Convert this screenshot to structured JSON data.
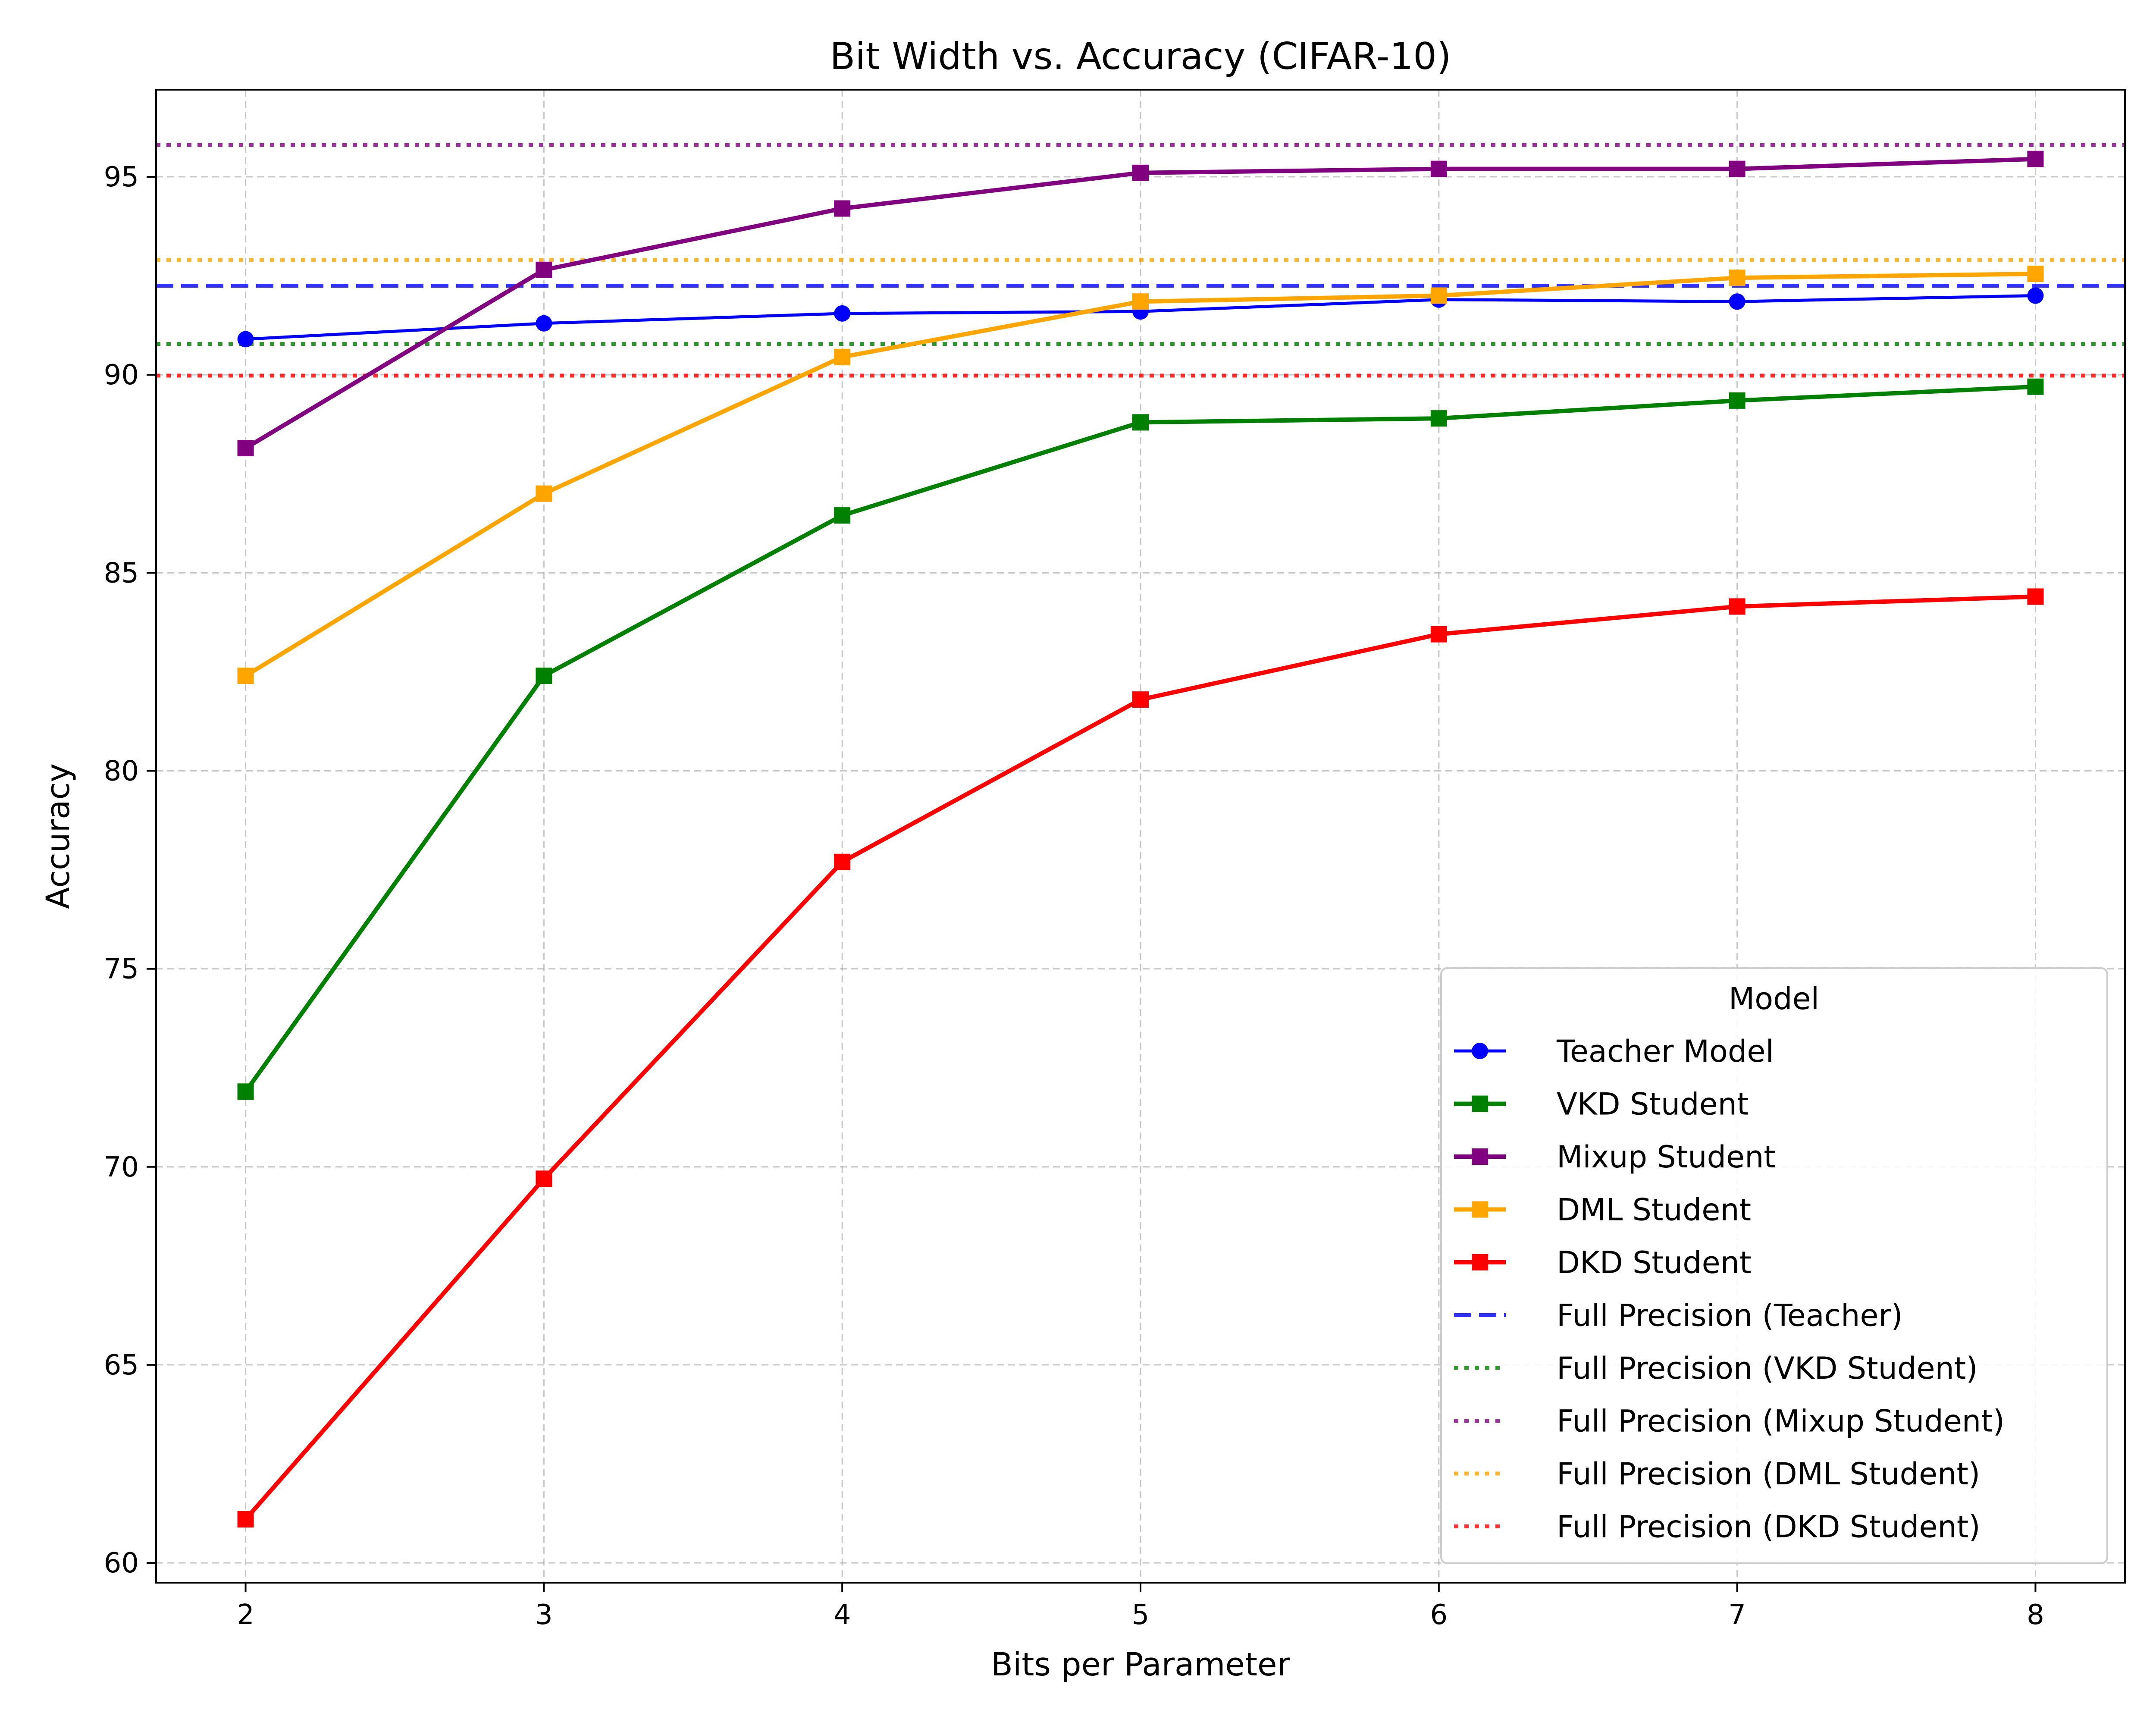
{
  "chart_data": {
    "type": "line",
    "title": "Bit Width vs. Accuracy (CIFAR-10)",
    "xlabel": "Bits per Parameter",
    "ylabel": "Accuracy",
    "xlim": [
      1.7,
      8.3
    ],
    "ylim": [
      59.5,
      97.2
    ],
    "xticks": [
      2,
      3,
      4,
      5,
      6,
      7,
      8
    ],
    "yticks": [
      60,
      65,
      70,
      75,
      80,
      85,
      90,
      95
    ],
    "grid": true,
    "legend": {
      "title": "Model",
      "placement": "bottom-right"
    },
    "x": [
      2,
      3,
      4,
      5,
      6,
      7,
      8
    ],
    "series": [
      {
        "name": "Teacher Model",
        "color": "#0000ff",
        "marker": "circle",
        "values": [
          90.9,
          91.3,
          91.55,
          91.6,
          91.9,
          91.85,
          92.0
        ]
      },
      {
        "name": "VKD Student",
        "color": "#008000",
        "marker": "square",
        "values": [
          71.9,
          82.4,
          86.45,
          88.8,
          88.9,
          89.35,
          89.7
        ]
      },
      {
        "name": "Mixup Student",
        "color": "#800080",
        "marker": "square",
        "values": [
          88.15,
          92.65,
          94.2,
          95.1,
          95.2,
          95.2,
          95.45
        ]
      },
      {
        "name": "DML Student",
        "color": "#ffa500",
        "marker": "square",
        "values": [
          82.4,
          87.0,
          90.45,
          91.85,
          92.0,
          92.45,
          92.55
        ]
      },
      {
        "name": "DKD Student",
        "color": "#ff0000",
        "marker": "square",
        "values": [
          61.1,
          69.7,
          77.7,
          81.8,
          83.45,
          84.15,
          84.4
        ]
      }
    ],
    "reference_lines": [
      {
        "name": "Full Precision (Teacher)",
        "color": "#0000ff",
        "style": "dashed",
        "y": 92.25
      },
      {
        "name": "Full Precision (VKD Student)",
        "color": "#008000",
        "style": "dotted",
        "y": 90.78
      },
      {
        "name": "Full Precision (Mixup Student)",
        "color": "#800080",
        "style": "dotted",
        "y": 95.8
      },
      {
        "name": "Full Precision (DML Student)",
        "color": "#ffa500",
        "style": "dotted",
        "y": 92.9
      },
      {
        "name": "Full Precision (DKD Student)",
        "color": "#ff0000",
        "style": "dotted",
        "y": 89.98
      }
    ]
  }
}
